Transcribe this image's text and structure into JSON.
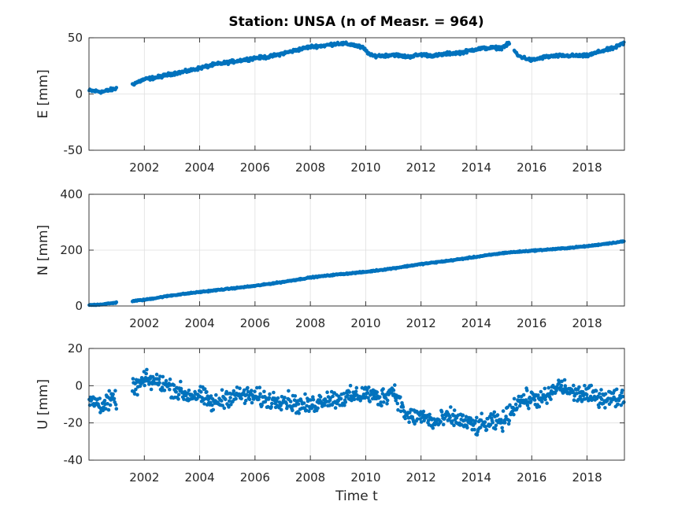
{
  "title": "Station: UNSA (n of Measr. = 964)",
  "xlabel": "Time t",
  "colors": {
    "marker": "#0072BD",
    "axis": "#262626",
    "grid": "#dfdfdf"
  },
  "chart_data": [
    {
      "type": "scatter",
      "ylabel": "E [mm]",
      "xlim": [
        2000.0,
        2019.35
      ],
      "ylim": [
        -50,
        50
      ],
      "yticks": [
        -50,
        0,
        50
      ],
      "xticks": [
        2002,
        2004,
        2006,
        2008,
        2010,
        2012,
        2014,
        2016,
        2018
      ],
      "grid": true,
      "series": [
        {
          "x": [
            2000.0,
            2000.5,
            2001.0,
            2001.6,
            2002.0,
            2002.5,
            2003.0,
            2003.5,
            2004.0,
            2004.5,
            2005.0,
            2005.5,
            2006.0,
            2006.5,
            2007.0,
            2007.5,
            2008.0,
            2008.5,
            2009.0,
            2009.5,
            2009.9,
            2010.2,
            2010.6,
            2011.0,
            2011.5,
            2012.0,
            2012.5,
            2013.0,
            2013.5,
            2014.0,
            2014.5,
            2014.9,
            2015.2,
            2015.5,
            2016.0,
            2016.5,
            2017.0,
            2017.5,
            2018.0,
            2018.5,
            2019.0,
            2019.3
          ],
          "values": [
            3,
            2,
            5,
            9,
            13,
            15,
            18,
            20,
            23,
            26,
            28,
            30,
            32,
            33,
            36,
            39,
            42,
            43,
            45,
            44,
            41,
            34,
            34,
            35,
            33,
            35,
            34,
            36,
            37,
            40,
            41,
            41,
            45,
            34,
            30,
            33,
            34,
            34,
            34,
            38,
            41,
            45
          ]
        }
      ]
    },
    {
      "type": "scatter",
      "ylabel": "N [mm]",
      "xlim": [
        2000.0,
        2019.35
      ],
      "ylim": [
        0,
        400
      ],
      "yticks": [
        0,
        200,
        400
      ],
      "xticks": [
        2002,
        2004,
        2006,
        2008,
        2010,
        2012,
        2014,
        2016,
        2018
      ],
      "grid": true,
      "series": [
        {
          "x": [
            2000.0,
            2000.5,
            2001.0,
            2001.6,
            2002.0,
            2003.0,
            2004.0,
            2005.0,
            2006.0,
            2007.0,
            2008.0,
            2009.0,
            2010.0,
            2011.0,
            2012.0,
            2013.0,
            2014.0,
            2015.0,
            2016.0,
            2017.0,
            2018.0,
            2019.3
          ],
          "values": [
            3,
            6,
            12,
            18,
            22,
            38,
            50,
            61,
            72,
            86,
            102,
            113,
            122,
            135,
            150,
            162,
            176,
            190,
            198,
            205,
            214,
            231
          ]
        }
      ]
    },
    {
      "type": "scatter",
      "ylabel": "U [mm]",
      "xlim": [
        2000.0,
        2019.35
      ],
      "ylim": [
        -40,
        20
      ],
      "yticks": [
        -40,
        -20,
        0,
        20
      ],
      "xticks": [
        2002,
        2004,
        2006,
        2008,
        2010,
        2012,
        2014,
        2016,
        2018
      ],
      "grid": true,
      "series": [
        {
          "x": [
            2000.0,
            2000.5,
            2001.0,
            2001.6,
            2002.0,
            2002.5,
            2003.0,
            2003.5,
            2004.0,
            2004.5,
            2005.0,
            2005.5,
            2006.0,
            2006.5,
            2007.0,
            2007.5,
            2008.0,
            2008.5,
            2009.0,
            2009.5,
            2010.0,
            2010.5,
            2011.0,
            2011.5,
            2012.0,
            2012.5,
            2013.0,
            2013.5,
            2014.0,
            2014.5,
            2015.0,
            2015.5,
            2016.0,
            2016.5,
            2017.0,
            2017.5,
            2018.0,
            2018.5,
            2019.0,
            2019.3
          ],
          "values": [
            -8,
            -10,
            -7,
            -2,
            3,
            2,
            -1,
            -5,
            -5,
            -10,
            -6,
            -5,
            -6,
            -8,
            -7,
            -10,
            -11,
            -7,
            -7,
            -6,
            -4,
            -7,
            -2,
            -17,
            -16,
            -20,
            -17,
            -19,
            -22,
            -20,
            -19,
            -8,
            -7,
            -7,
            0,
            -4,
            -5,
            -6,
            -7,
            -6
          ]
        }
      ]
    }
  ]
}
